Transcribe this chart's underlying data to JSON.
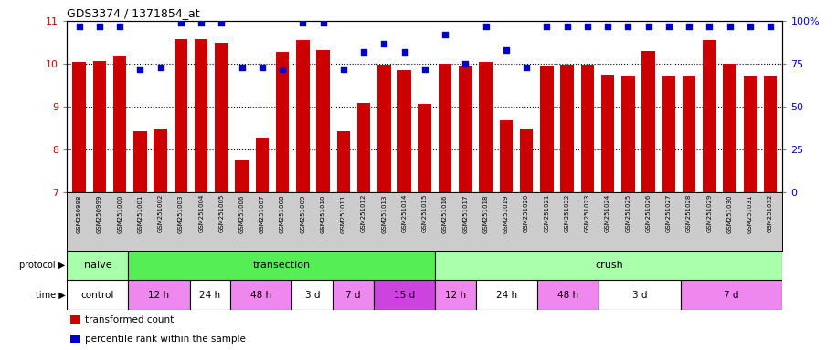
{
  "title": "GDS3374 / 1371854_at",
  "categories": [
    "GSM250998",
    "GSM250999",
    "GSM251000",
    "GSM251001",
    "GSM251002",
    "GSM251003",
    "GSM251004",
    "GSM251005",
    "GSM251006",
    "GSM251007",
    "GSM251008",
    "GSM251009",
    "GSM251010",
    "GSM251011",
    "GSM251012",
    "GSM251013",
    "GSM251014",
    "GSM251015",
    "GSM251016",
    "GSM251017",
    "GSM251018",
    "GSM251019",
    "GSM251020",
    "GSM251021",
    "GSM251022",
    "GSM251023",
    "GSM251024",
    "GSM251025",
    "GSM251026",
    "GSM251027",
    "GSM251028",
    "GSM251029",
    "GSM251030",
    "GSM251031",
    "GSM251032"
  ],
  "bar_values": [
    10.05,
    10.07,
    10.2,
    8.43,
    8.5,
    10.57,
    10.58,
    10.5,
    7.75,
    8.28,
    10.27,
    10.55,
    10.32,
    8.43,
    9.09,
    9.97,
    9.85,
    9.07,
    10.0,
    9.95,
    10.05,
    8.68,
    8.5,
    9.95,
    9.98,
    9.98,
    9.75,
    9.73,
    10.3,
    9.72,
    9.73,
    10.55,
    10.0,
    9.73,
    9.73
  ],
  "percentile_values": [
    97,
    97,
    97,
    72,
    73,
    99,
    99,
    99,
    73,
    73,
    72,
    99,
    99,
    72,
    82,
    87,
    82,
    72,
    92,
    75,
    97,
    83,
    73,
    97,
    97,
    97,
    97,
    97,
    97,
    97,
    97,
    97,
    97,
    97,
    97
  ],
  "ylim_left": [
    7,
    11
  ],
  "ylim_right": [
    0,
    100
  ],
  "yticks_left": [
    7,
    8,
    9,
    10,
    11
  ],
  "yticks_right": [
    0,
    25,
    50,
    75,
    100
  ],
  "bar_color": "#cc0000",
  "dot_color": "#0000cc",
  "protocol_groups": [
    {
      "label": "naive",
      "start": 0,
      "end": 3,
      "color": "#aaffaa"
    },
    {
      "label": "transection",
      "start": 3,
      "end": 18,
      "color": "#55ee55"
    },
    {
      "label": "crush",
      "start": 18,
      "end": 35,
      "color": "#aaffaa"
    }
  ],
  "time_groups": [
    {
      "label": "control",
      "start": 0,
      "end": 3,
      "color": "#ffffff"
    },
    {
      "label": "12 h",
      "start": 3,
      "end": 6,
      "color": "#ee88ee"
    },
    {
      "label": "24 h",
      "start": 6,
      "end": 8,
      "color": "#ffffff"
    },
    {
      "label": "48 h",
      "start": 8,
      "end": 11,
      "color": "#ee88ee"
    },
    {
      "label": "3 d",
      "start": 11,
      "end": 13,
      "color": "#ffffff"
    },
    {
      "label": "7 d",
      "start": 13,
      "end": 15,
      "color": "#ee88ee"
    },
    {
      "label": "15 d",
      "start": 15,
      "end": 18,
      "color": "#cc44dd"
    },
    {
      "label": "12 h",
      "start": 18,
      "end": 20,
      "color": "#ee88ee"
    },
    {
      "label": "24 h",
      "start": 20,
      "end": 23,
      "color": "#ffffff"
    },
    {
      "label": "48 h",
      "start": 23,
      "end": 26,
      "color": "#ee88ee"
    },
    {
      "label": "3 d",
      "start": 26,
      "end": 30,
      "color": "#ffffff"
    },
    {
      "label": "7 d",
      "start": 30,
      "end": 35,
      "color": "#ee88ee"
    }
  ],
  "legend_items": [
    {
      "label": "transformed count",
      "color": "#cc0000"
    },
    {
      "label": "percentile rank within the sample",
      "color": "#0000cc"
    }
  ],
  "bg_color": "#ffffff",
  "tick_bg_color": "#cccccc"
}
